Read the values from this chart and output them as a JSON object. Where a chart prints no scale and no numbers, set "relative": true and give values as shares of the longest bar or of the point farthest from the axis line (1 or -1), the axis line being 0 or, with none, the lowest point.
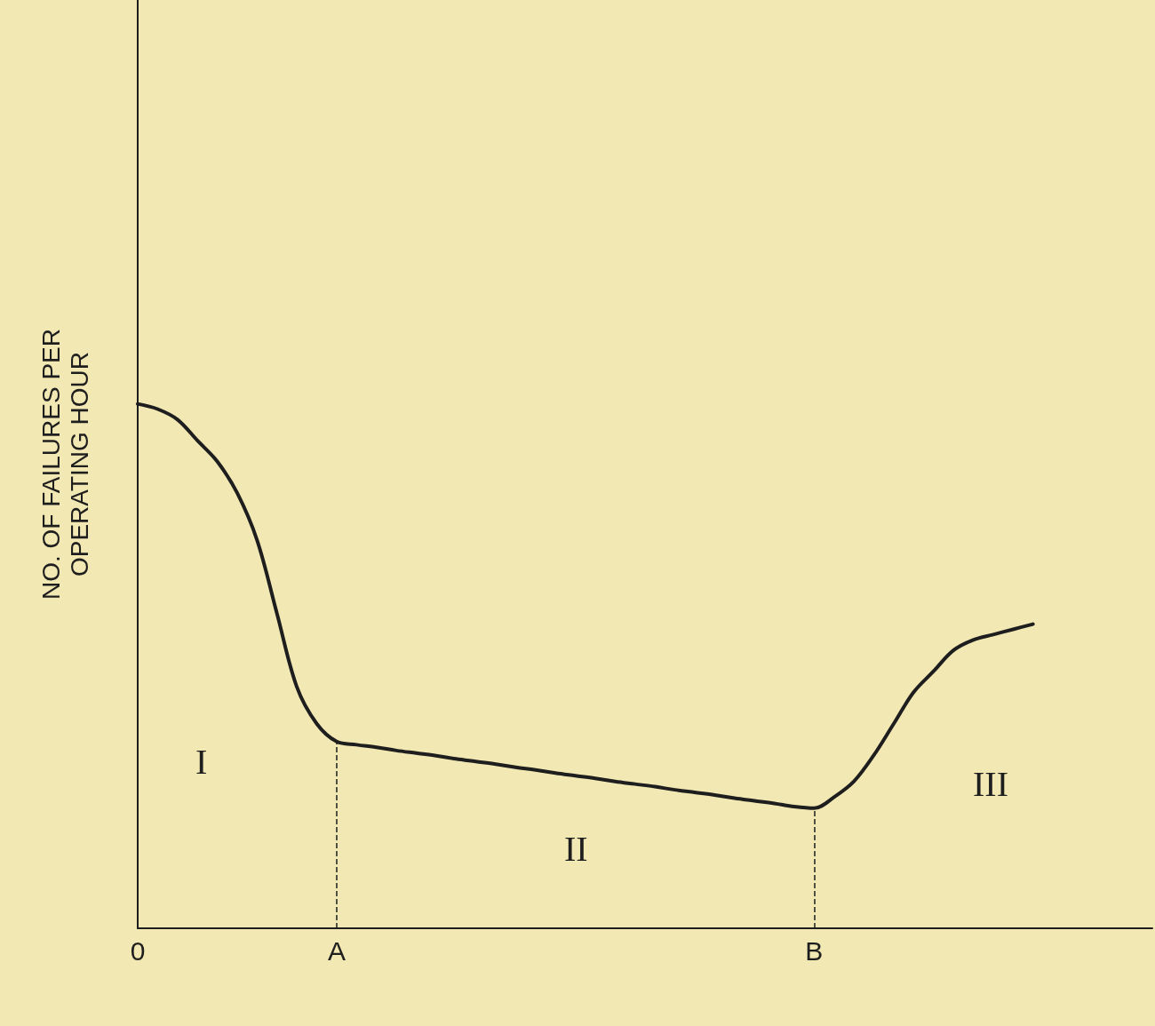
{
  "chart_data": {
    "type": "line",
    "relative": true,
    "ylabel": "NO. OF FAILURES PER\nOPERATING HOUR",
    "categories": [
      "0",
      null,
      null,
      null,
      null,
      null,
      null,
      null,
      null,
      null,
      "A",
      null,
      null,
      null,
      null,
      null,
      null,
      null,
      null,
      null,
      null,
      null,
      null,
      null,
      null,
      null,
      null,
      null,
      null,
      null,
      null,
      null,
      null,
      null,
      "B",
      null,
      null,
      null,
      null,
      null,
      null,
      null,
      null,
      null,
      null,
      null,
      null,
      null,
      null,
      null,
      null,
      null
    ],
    "series": [
      {
        "color": "#1e1e1e",
        "values": [
          1,
          0.99,
          0.97,
          0.93,
          0.89,
          0.83,
          0.74,
          0.6,
          0.46,
          0.39,
          0.356,
          0.35,
          0.345,
          0.339,
          0.334,
          0.329,
          0.323,
          0.318,
          0.313,
          0.307,
          0.302,
          0.296,
          0.291,
          0.286,
          0.28,
          0.275,
          0.27,
          0.264,
          0.259,
          0.254,
          0.248,
          0.243,
          0.238,
          0.232,
          0.229,
          0.25,
          0.28,
          0.33,
          0.39,
          0.45,
          0.49,
          0.53,
          0.55,
          0.56,
          0.57,
          0.58,
          null,
          null,
          null,
          null,
          null,
          null
        ]
      }
    ],
    "ref_lines": [
      {
        "axis": "x",
        "value": "A",
        "line_style": "dashed",
        "color": "#1e1e1e"
      },
      {
        "axis": "x",
        "value": "B",
        "line_style": "dashed",
        "color": "#1e1e1e"
      }
    ],
    "annotations": [
      "I",
      "II",
      "III"
    ],
    "grid": false,
    "marker": "none",
    "line_style": "solid"
  }
}
